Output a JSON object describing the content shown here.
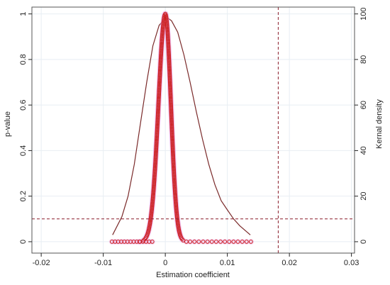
{
  "chart_data": {
    "type": "scatter",
    "xlabel": "Estimation coefficient",
    "ylabel_left": "p-value",
    "ylabel_right": "Kernal density",
    "xlim": [
      -0.02,
      0.03
    ],
    "ylim_left": [
      0,
      1
    ],
    "ylim_right": [
      0,
      100
    ],
    "x_ticks": [
      -0.02,
      -0.01,
      0,
      0.01,
      0.02,
      0.03
    ],
    "x_tick_labels": [
      "-0.02",
      "-0.01",
      "0",
      "0.01",
      "0.02",
      "0.03"
    ],
    "y_left_ticks": [
      0,
      0.2,
      0.4,
      0.6,
      0.8,
      1
    ],
    "y_left_tick_labels": [
      "0",
      "0.2",
      "0.4",
      "0.6",
      "0.8",
      "1"
    ],
    "y_right_ticks": [
      0,
      20,
      40,
      60,
      80,
      100
    ],
    "y_right_tick_labels": [
      "0",
      "20",
      "40",
      "60",
      "80",
      "100"
    ],
    "grid": true,
    "reference_lines": {
      "vertical_x": 0.0182,
      "horizontal_pvalue": 0.1
    },
    "scatter_spread": {
      "min_x": -0.0086,
      "max_x": 0.0138,
      "sigma_left": 0.0011,
      "sigma_right": 0.0009
    },
    "density_curve": {
      "x": [
        -0.0085,
        -0.007,
        -0.006,
        -0.005,
        -0.004,
        -0.003,
        -0.002,
        -0.001,
        0.0,
        0.0005,
        0.001,
        0.002,
        0.003,
        0.004,
        0.005,
        0.006,
        0.007,
        0.008,
        0.009,
        0.01,
        0.011,
        0.012,
        0.0137
      ],
      "y": [
        3,
        11,
        20,
        34,
        52,
        70,
        86,
        95,
        98,
        98,
        97,
        92,
        82,
        70,
        57,
        45,
        34,
        25,
        18,
        14,
        10,
        7,
        3
      ]
    },
    "colors": {
      "points": "#cc1f1f",
      "point_halo": "#e9a0e6",
      "density": "#7a2a2a",
      "reference": "#8a1c2a",
      "grid": "#e8eef3"
    }
  }
}
